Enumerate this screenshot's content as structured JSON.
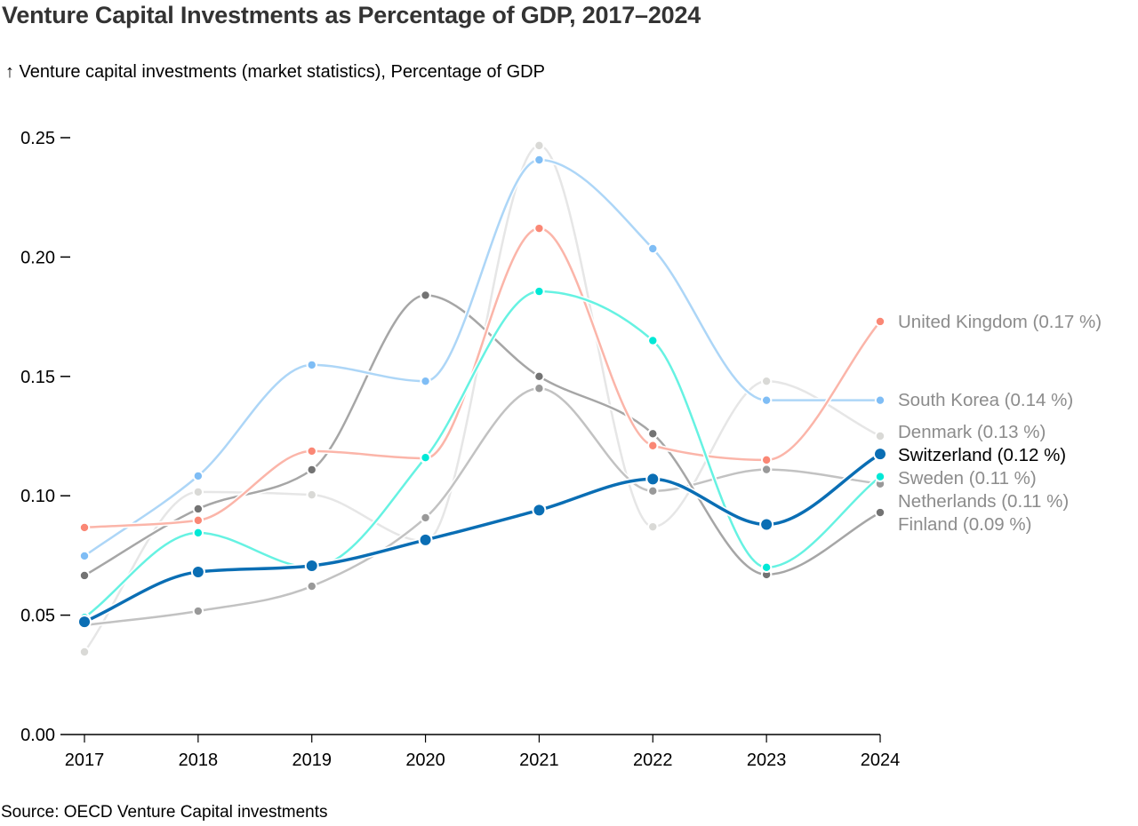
{
  "title": "Venture Capital Investments as Percentage of GDP, 2017–2024",
  "source": "Source: OECD Venture Capital investments",
  "chart_data": {
    "type": "line",
    "title": "Venture Capital Investments as Percentage of GDP, 2017–2024",
    "xlabel": "",
    "ylabel": "↑ Venture capital investments (market statistics), Percentage of GDP",
    "x": [
      "2017",
      "2018",
      "2019",
      "2020",
      "2021",
      "2022",
      "2023",
      "2024"
    ],
    "ylim": [
      0,
      0.25
    ],
    "yticks": [
      "0.00",
      "0.05",
      "0.10",
      "0.15",
      "0.20",
      "0.25"
    ],
    "ytick_values": [
      0,
      0.05,
      0.1,
      0.15,
      0.2,
      0.25
    ],
    "grid": false,
    "legend": "right (end-of-line labels)",
    "highlighted_series": "Switzerland",
    "series": [
      {
        "name": "Denmark",
        "label": "Denmark (0.13 %)",
        "color": "#d9d9d6",
        "line_color": "#e6e6e6",
        "values": [
          0.0346,
          0.1016,
          0.1004,
          0.081,
          0.2467,
          0.087,
          0.148,
          0.125
        ]
      },
      {
        "name": "Netherlands",
        "label": "Netherlands (0.11 %)",
        "color": "#999999",
        "line_color": "#c2c2c2",
        "values": [
          0.0458,
          0.0517,
          0.0621,
          0.0908,
          0.145,
          0.102,
          0.111,
          0.105
        ]
      },
      {
        "name": "Finland",
        "label": "Finland (0.09 %)",
        "color": "#737373",
        "line_color": "#a6a6a6",
        "values": [
          0.0666,
          0.0945,
          0.1109,
          0.184,
          0.15,
          0.126,
          0.067,
          0.093
        ]
      },
      {
        "name": "South Korea",
        "label": "South Korea (0.14 %)",
        "color": "#7fbdf5",
        "line_color": "#add6f7",
        "values": [
          0.0748,
          0.1083,
          0.1548,
          0.148,
          0.2407,
          0.2035,
          0.14,
          0.14
        ]
      },
      {
        "name": "United Kingdom",
        "label": "United Kingdom (0.17 %)",
        "color": "#fa8775",
        "line_color": "#fbb5a9",
        "values": [
          0.0867,
          0.0897,
          0.1187,
          0.1157,
          0.212,
          0.121,
          0.115,
          0.173
        ]
      },
      {
        "name": "Sweden",
        "label": "Sweden (0.11 %)",
        "color": "#00e8d6",
        "line_color": "#66f2e2",
        "values": [
          0.049,
          0.0845,
          0.07,
          0.116,
          0.1856,
          0.165,
          0.07,
          0.108
        ]
      },
      {
        "name": "Switzerland",
        "label": "Switzerland (0.12 %)",
        "color": "#0a6eb4",
        "line_color": "#0a6eb4",
        "values": [
          0.0472,
          0.0681,
          0.0707,
          0.0815,
          0.094,
          0.107,
          0.088,
          0.1175
        ]
      }
    ]
  }
}
